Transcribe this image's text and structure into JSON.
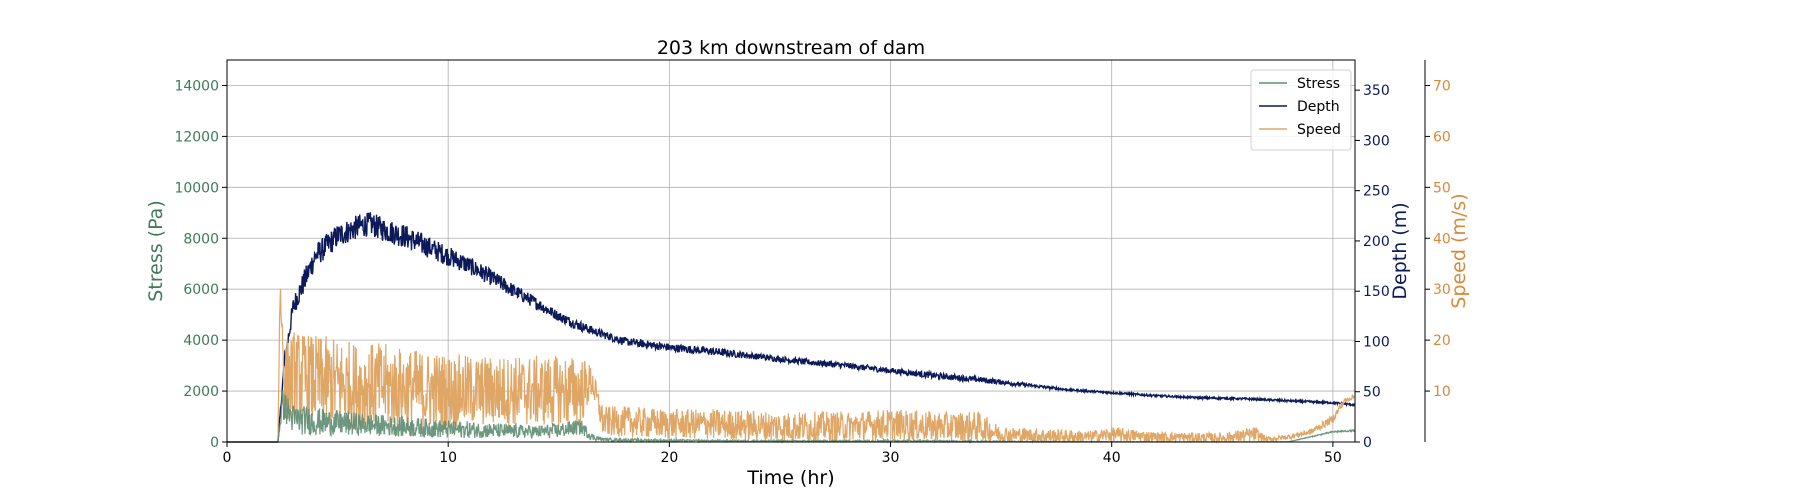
{
  "chart_data": {
    "type": "line",
    "title": "203 km downstream of dam",
    "xlabel": "Time (hr)",
    "xlim": [
      0,
      51
    ],
    "xticks": [
      0,
      10,
      20,
      30,
      40,
      50
    ],
    "grid": true,
    "legend_position": "top-right",
    "axes": {
      "stress": {
        "label": "Stress (Pa)",
        "color": "#3f7a59",
        "ylim": [
          0,
          15000
        ],
        "ticks": [
          0,
          2000,
          4000,
          6000,
          8000,
          10000,
          12000,
          14000
        ],
        "side": "left"
      },
      "depth": {
        "label": "Depth (m)",
        "color": "#0c1a5a",
        "ylim": [
          0,
          380
        ],
        "ticks": [
          0,
          50,
          100,
          150,
          200,
          250,
          300,
          350
        ],
        "side": "right"
      },
      "speed": {
        "label": "Speed (m/s)",
        "color": "#d9893c",
        "ylim": [
          0,
          75
        ],
        "ticks": [
          10,
          20,
          30,
          40,
          50,
          60,
          70
        ],
        "side": "right-offset"
      }
    },
    "series": [
      {
        "name": "Stress",
        "axis": "stress",
        "color": "#5e8c72",
        "x": [
          0,
          2.3,
          2.5,
          3,
          4,
          5,
          6,
          7,
          8,
          9,
          10,
          11,
          12,
          13,
          14,
          15,
          16,
          16.5,
          17,
          18,
          20,
          22,
          25,
          28,
          30,
          33,
          36,
          40,
          45,
          48,
          50,
          51
        ],
        "y": [
          0,
          0,
          1500,
          900,
          800,
          750,
          700,
          650,
          600,
          550,
          500,
          480,
          450,
          420,
          400,
          450,
          600,
          200,
          100,
          80,
          60,
          50,
          40,
          40,
          50,
          30,
          20,
          10,
          5,
          10,
          400,
          450
        ],
        "noise_amp": [
          0,
          0,
          600,
          600,
          550,
          500,
          450,
          420,
          400,
          380,
          350,
          330,
          300,
          280,
          260,
          300,
          300,
          150,
          60,
          50,
          40,
          30,
          30,
          30,
          40,
          30,
          20,
          10,
          5,
          5,
          30,
          30
        ]
      },
      {
        "name": "Depth",
        "axis": "depth",
        "color": "#0c1a5a",
        "x": [
          0,
          2.3,
          2.6,
          3,
          3.5,
          4,
          5,
          6,
          6.5,
          7,
          8,
          9,
          10,
          11,
          12,
          13,
          14,
          15,
          16,
          17,
          18,
          20,
          22,
          24,
          26,
          28,
          30,
          32,
          34,
          36,
          38,
          40,
          42,
          44,
          46,
          48,
          50,
          51
        ],
        "y": [
          0,
          0,
          80,
          135,
          160,
          185,
          205,
          215,
          217,
          212,
          205,
          195,
          185,
          175,
          163,
          150,
          138,
          125,
          115,
          107,
          100,
          94,
          90,
          85,
          80,
          76,
          71,
          66,
          62,
          57,
          52,
          49,
          46,
          44,
          43,
          41,
          39,
          37
        ],
        "noise_amp": [
          0,
          0,
          8,
          10,
          12,
          12,
          12,
          12,
          12,
          12,
          12,
          11,
          10,
          9,
          8,
          7,
          6,
          5,
          5,
          4,
          4,
          4,
          4,
          3,
          3,
          3,
          3,
          3,
          3,
          2,
          1,
          1,
          1,
          1,
          1,
          1,
          1,
          1
        ]
      },
      {
        "name": "Speed",
        "axis": "speed",
        "color": "#dfa666",
        "x": [
          0,
          2.3,
          2.4,
          2.6,
          3,
          4,
          5,
          6,
          7,
          8,
          9,
          10,
          11,
          12,
          13,
          14,
          15,
          16,
          16.5,
          17,
          18,
          20,
          22,
          25,
          28,
          30,
          32,
          34,
          35,
          37,
          39,
          40,
          42,
          45,
          46.5,
          47,
          48,
          49,
          50,
          50.5,
          51
        ],
        "y": [
          0,
          0,
          30,
          12,
          13,
          12,
          11.5,
          11,
          11,
          10.5,
          10,
          10,
          10,
          10,
          10,
          10,
          10,
          10,
          12,
          4,
          4,
          3.5,
          3.5,
          3,
          3,
          3.5,
          3,
          3,
          1.5,
          1.2,
          1,
          1.5,
          1,
          0.8,
          1.5,
          0.5,
          1,
          2,
          4.5,
          8,
          9
        ],
        "noise_amp": [
          0,
          0,
          3,
          8,
          9,
          9,
          9,
          8.5,
          8.5,
          8,
          8,
          7.5,
          7,
          7,
          7,
          7,
          7,
          7,
          3,
          3,
          3,
          3,
          3,
          3,
          3,
          3,
          3,
          3,
          1.5,
          1.5,
          1.2,
          1.5,
          1,
          1,
          1.5,
          0.5,
          0.5,
          0.6,
          0.8,
          0.6,
          0.3
        ]
      }
    ]
  }
}
